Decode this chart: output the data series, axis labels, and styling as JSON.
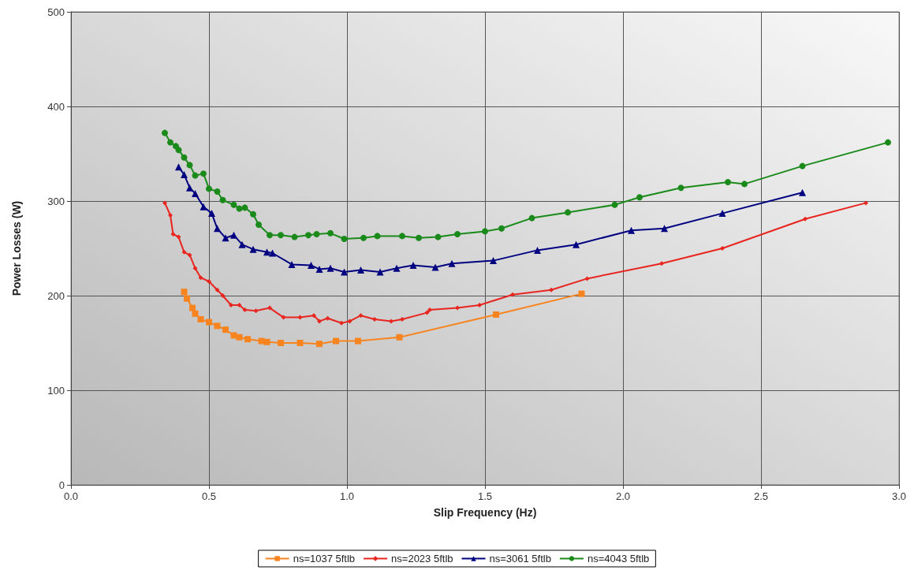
{
  "chart_data": {
    "type": "line",
    "xlabel": "Slip Frequency (Hz)",
    "ylabel": "Power Losses (W)",
    "xlim": [
      0,
      3
    ],
    "xticks": [
      {
        "value": 0,
        "label": "0.0"
      },
      {
        "value": 0.5,
        "label": "0.5"
      },
      {
        "value": 1,
        "label": "1.0"
      },
      {
        "value": 1.5,
        "label": "1.5"
      },
      {
        "value": 2,
        "label": "2.0"
      },
      {
        "value": 2.5,
        "label": "2.5"
      },
      {
        "value": 3,
        "label": "3.0"
      }
    ],
    "ylim": [
      0,
      500
    ],
    "yticks": [
      0,
      100,
      200,
      300,
      400,
      500
    ],
    "grid": true,
    "legend": "bottom",
    "line_style": "solid",
    "series": [
      {
        "name": "ns=1037 5ftlb",
        "color": "#f7841f",
        "marker": "square",
        "x": [
          0.41,
          0.42,
          0.44,
          0.45,
          0.47,
          0.5,
          0.53,
          0.56,
          0.59,
          0.61,
          0.64,
          0.69,
          0.71,
          0.76,
          0.83,
          0.9,
          0.96,
          1.04,
          1.19,
          1.54,
          1.85
        ],
        "values": [
          204,
          197,
          187,
          181,
          175,
          172,
          168,
          164,
          158,
          156,
          154,
          152,
          151,
          150,
          150,
          149,
          152,
          152,
          156,
          180,
          202
        ]
      },
      {
        "name": "ns=2023 5ftlb",
        "color": "#e8251f",
        "marker": "diamond",
        "x": [
          0.34,
          0.36,
          0.37,
          0.39,
          0.41,
          0.43,
          0.45,
          0.47,
          0.5,
          0.53,
          0.55,
          0.58,
          0.61,
          0.63,
          0.67,
          0.72,
          0.77,
          0.83,
          0.88,
          0.9,
          0.93,
          0.98,
          1.01,
          1.05,
          1.1,
          1.16,
          1.2,
          1.29,
          1.3,
          1.4,
          1.48,
          1.6,
          1.74,
          1.87,
          2.14,
          2.36,
          2.66,
          2.88
        ],
        "values": [
          298,
          285,
          265,
          262,
          246,
          243,
          229,
          219,
          215,
          206,
          200,
          190,
          190,
          185,
          184,
          187,
          177,
          177,
          179,
          173,
          176,
          171,
          173,
          179,
          175,
          173,
          175,
          182,
          185,
          187,
          190,
          201,
          206,
          218,
          234,
          250,
          281,
          298
        ]
      },
      {
        "name": "ns=3061 5ftlb",
        "color": "#000080",
        "marker": "triangle",
        "x": [
          0.39,
          0.41,
          0.43,
          0.45,
          0.48,
          0.51,
          0.53,
          0.56,
          0.59,
          0.62,
          0.66,
          0.71,
          0.73,
          0.8,
          0.87,
          0.9,
          0.94,
          0.99,
          1.05,
          1.12,
          1.18,
          1.24,
          1.32,
          1.38,
          1.53,
          1.69,
          1.83,
          2.03,
          2.15,
          2.36,
          2.65
        ],
        "values": [
          336,
          328,
          314,
          308,
          294,
          287,
          271,
          261,
          264,
          254,
          249,
          246,
          245,
          233,
          232,
          228,
          229,
          225,
          227,
          225,
          229,
          232,
          230,
          234,
          237,
          248,
          254,
          269,
          271,
          287,
          309
        ]
      },
      {
        "name": "ns=4043 5ftlb",
        "color": "#1a8a1a",
        "marker": "circle",
        "x": [
          0.34,
          0.36,
          0.38,
          0.39,
          0.41,
          0.43,
          0.45,
          0.48,
          0.5,
          0.53,
          0.55,
          0.59,
          0.61,
          0.63,
          0.66,
          0.68,
          0.72,
          0.76,
          0.81,
          0.86,
          0.89,
          0.94,
          0.99,
          1.06,
          1.11,
          1.2,
          1.26,
          1.33,
          1.4,
          1.5,
          1.56,
          1.67,
          1.8,
          1.97,
          2.06,
          2.21,
          2.38,
          2.44,
          2.65,
          2.96
        ],
        "values": [
          372,
          362,
          358,
          354,
          346,
          338,
          327,
          329,
          313,
          310,
          301,
          296,
          292,
          293,
          286,
          275,
          264,
          264,
          262,
          264,
          265,
          266,
          260,
          261,
          263,
          263,
          261,
          262,
          265,
          268,
          271,
          282,
          288,
          296,
          304,
          314,
          320,
          318,
          337,
          362
        ]
      }
    ]
  }
}
